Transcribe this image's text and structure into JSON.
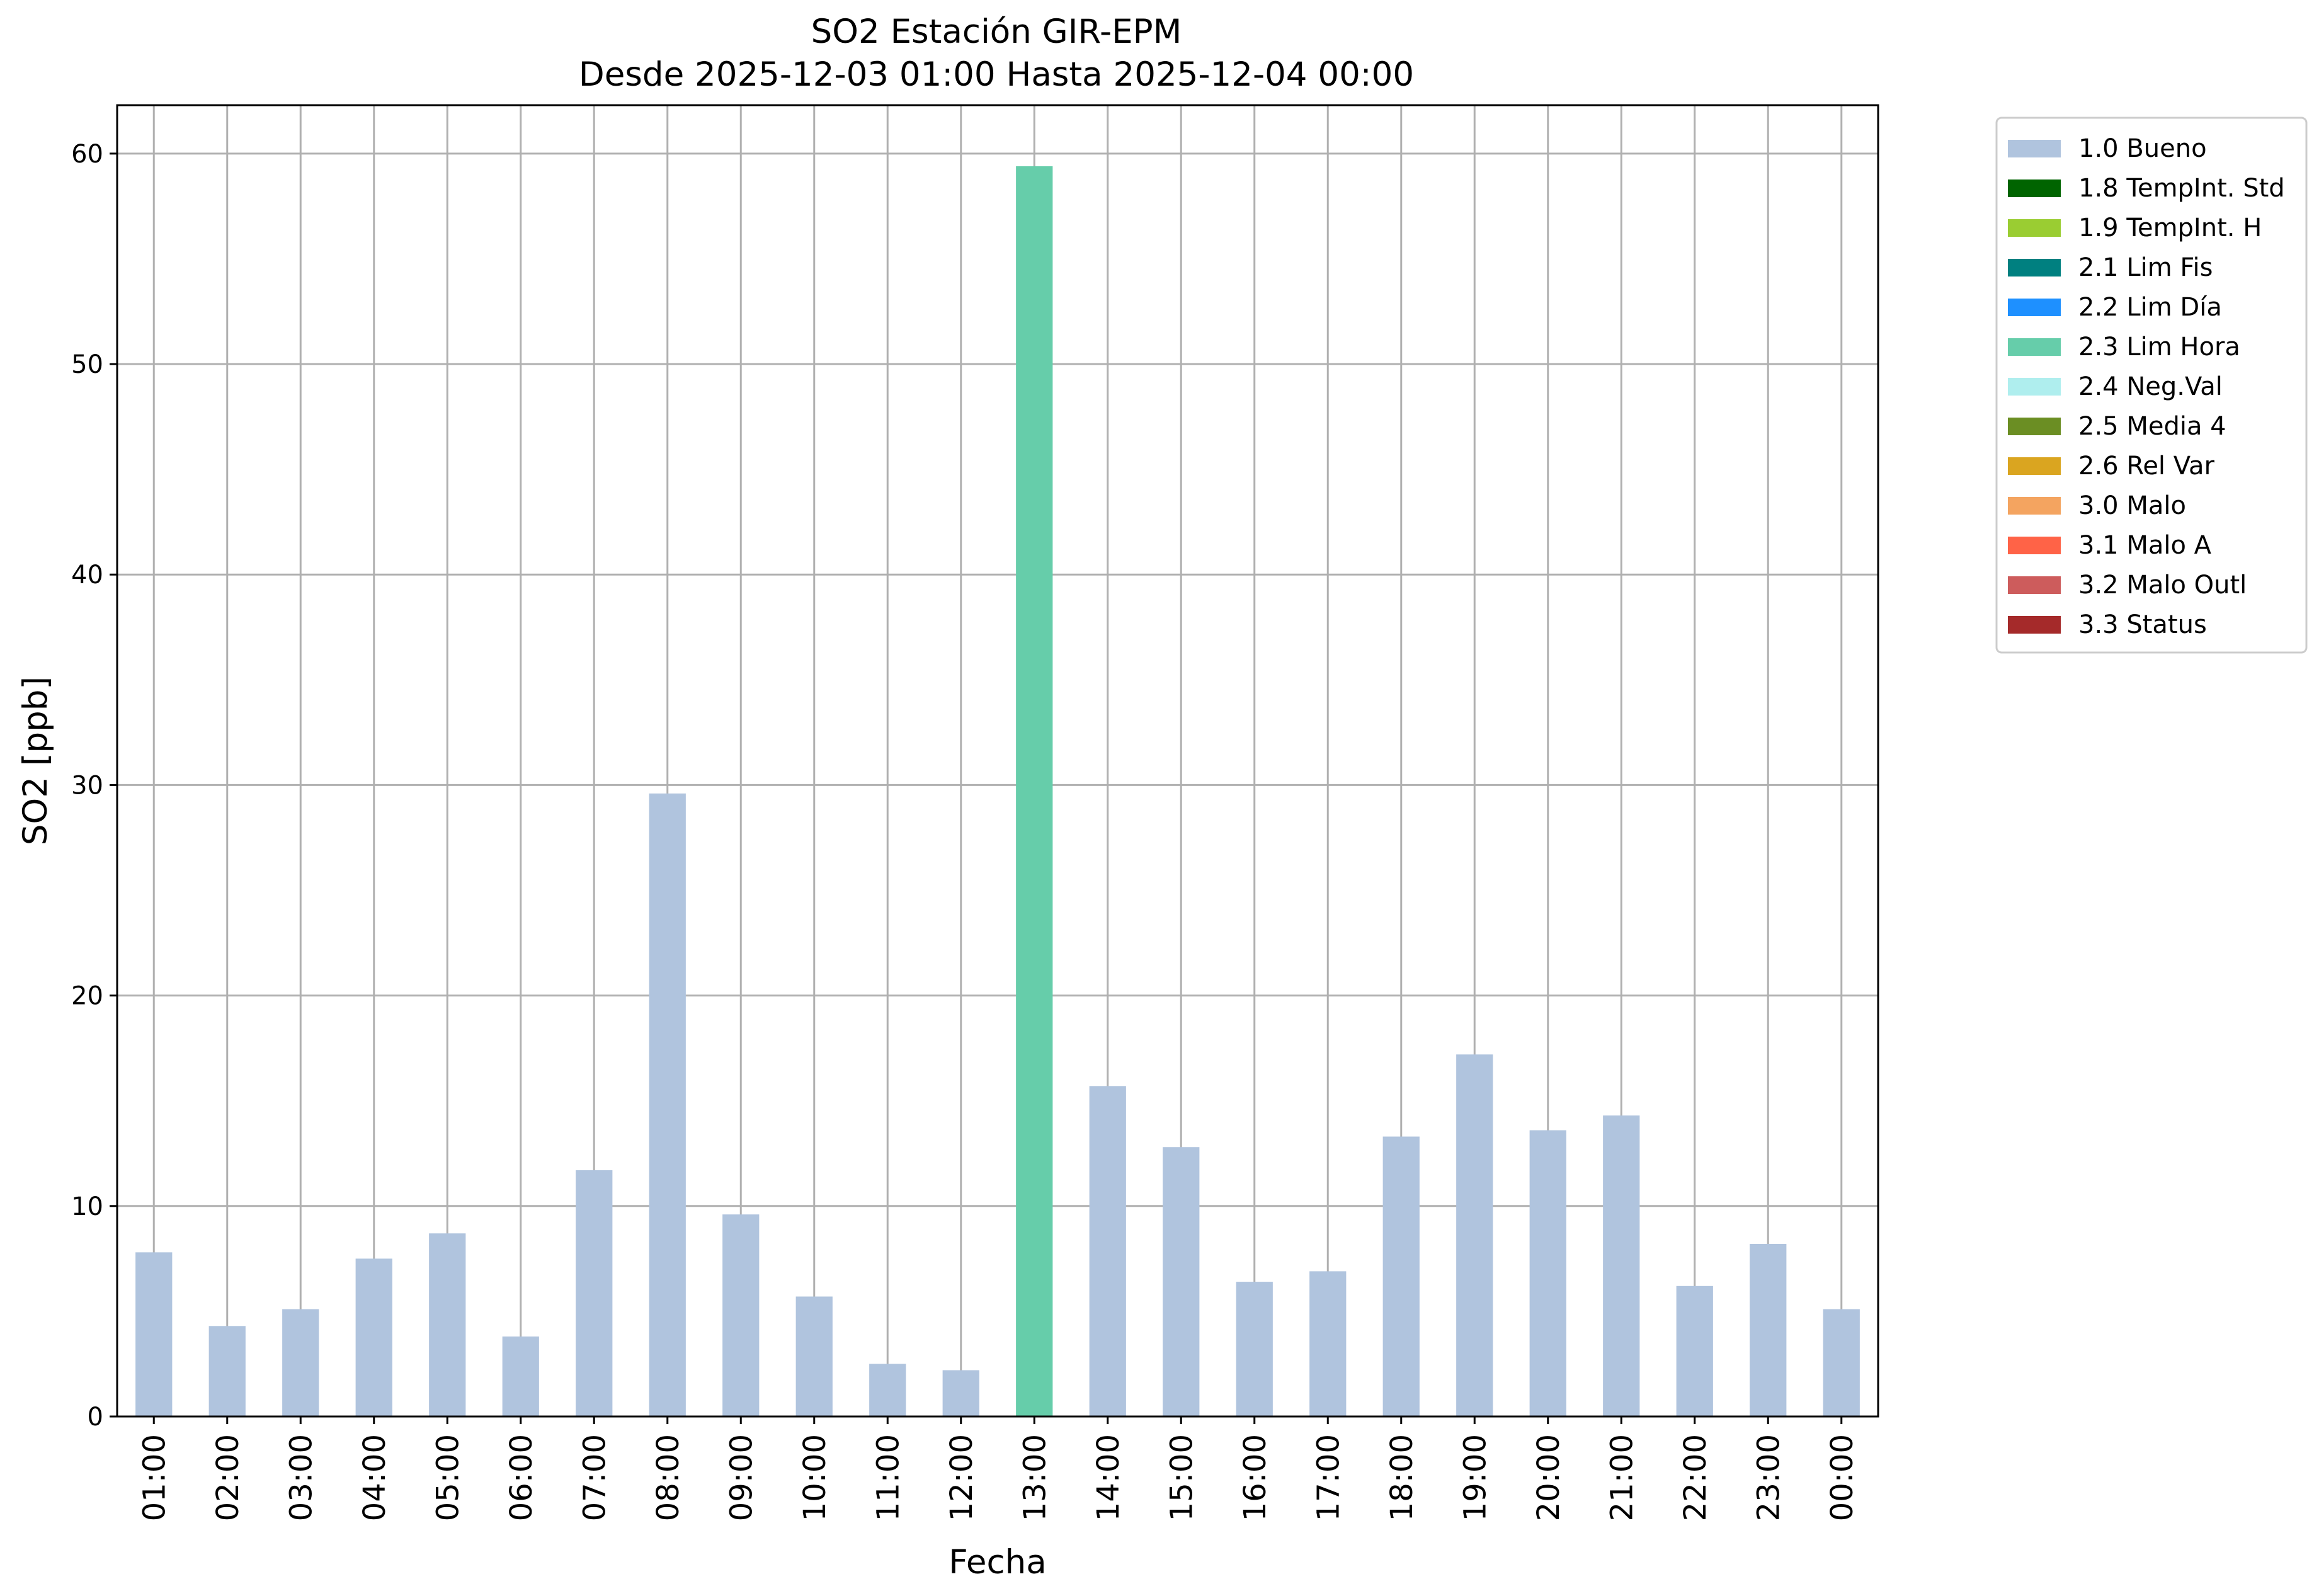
{
  "chart_data": {
    "type": "bar",
    "title": "SO2 Estación GIR-EPM",
    "subtitle": "Desde 2025-12-03 01:00 Hasta 2025-12-04 00:00",
    "xlabel": "Fecha",
    "ylabel": "SO2 [ppb]",
    "ylim": [
      0,
      62.3
    ],
    "yticks": [
      0,
      10,
      20,
      30,
      40,
      50,
      60
    ],
    "grid": true,
    "legend_position": "outside-top-right",
    "categories": [
      "01:00",
      "02:00",
      "03:00",
      "04:00",
      "05:00",
      "06:00",
      "07:00",
      "08:00",
      "09:00",
      "10:00",
      "11:00",
      "12:00",
      "13:00",
      "14:00",
      "15:00",
      "16:00",
      "17:00",
      "18:00",
      "19:00",
      "20:00",
      "21:00",
      "22:00",
      "23:00",
      "00:00"
    ],
    "values": [
      7.8,
      4.3,
      5.1,
      7.5,
      8.7,
      3.8,
      11.7,
      29.6,
      9.6,
      5.7,
      2.5,
      2.2,
      59.4,
      15.7,
      12.8,
      6.4,
      6.9,
      13.3,
      17.2,
      13.6,
      14.3,
      6.2,
      8.2,
      5.1
    ],
    "flags": [
      "1.0 Bueno",
      "1.0 Bueno",
      "1.0 Bueno",
      "1.0 Bueno",
      "1.0 Bueno",
      "1.0 Bueno",
      "1.0 Bueno",
      "1.0 Bueno",
      "1.0 Bueno",
      "1.0 Bueno",
      "1.0 Bueno",
      "1.0 Bueno",
      "2.3 Lim Hora",
      "1.0 Bueno",
      "1.0 Bueno",
      "1.0 Bueno",
      "1.0 Bueno",
      "1.0 Bueno",
      "1.0 Bueno",
      "1.0 Bueno",
      "1.0 Bueno",
      "1.0 Bueno",
      "1.0 Bueno",
      "1.0 Bueno"
    ],
    "legend": [
      {
        "name": "1.0 Bueno",
        "color": "#b0c4de"
      },
      {
        "name": "1.8 TempInt. Std",
        "color": "#006400"
      },
      {
        "name": "1.9 TempInt. H",
        "color": "#9acd32"
      },
      {
        "name": "2.1 Lim Fis",
        "color": "#008080"
      },
      {
        "name": "2.2 Lim Día",
        "color": "#1e90ff"
      },
      {
        "name": "2.3 Lim Hora",
        "color": "#66cdaa"
      },
      {
        "name": "2.4 Neg.Val",
        "color": "#afeeee"
      },
      {
        "name": "2.5 Media 4",
        "color": "#6b8e23"
      },
      {
        "name": "2.6 Rel Var",
        "color": "#daa520"
      },
      {
        "name": "3.0 Malo",
        "color": "#f4a460"
      },
      {
        "name": "3.1 Malo A",
        "color": "#ff6347"
      },
      {
        "name": "3.2 Malo Outl",
        "color": "#cd5c5c"
      },
      {
        "name": "3.3 Status",
        "color": "#a52a2a"
      }
    ],
    "colors": {
      "grid": "#b0b0b0",
      "axes": "#000000"
    }
  }
}
